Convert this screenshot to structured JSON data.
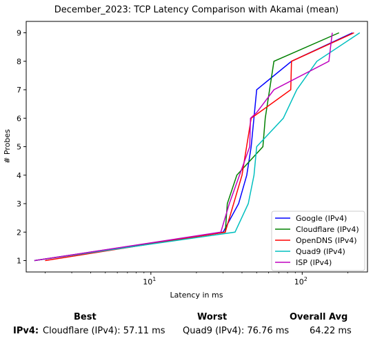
{
  "chart_data": {
    "type": "line",
    "title": "December_2023: TCP Latency Comparison with Akamai (mean)",
    "xlabel": "Latency in ms",
    "ylabel": "# Probes",
    "xscale": "log",
    "xlim": [
      1.5,
      270
    ],
    "ylim": [
      0.6,
      9.4
    ],
    "x_ticks": [
      10,
      100
    ],
    "x_tick_labels": [
      "10^1",
      "10^2"
    ],
    "y_ticks": [
      1,
      2,
      3,
      4,
      5,
      6,
      7,
      8,
      9
    ],
    "legend_position": "lower-right",
    "grid": false,
    "series": [
      {
        "name": "Google (IPv4)",
        "color": "#0000ff",
        "x": [
          1.7,
          30,
          38,
          43,
          46,
          50,
          85,
          215
        ],
        "y": [
          1,
          2,
          3,
          4,
          5,
          7,
          8,
          9
        ]
      },
      {
        "name": "Cloudflare (IPv4)",
        "color": "#008000",
        "x": [
          1.7,
          31,
          32,
          37,
          55,
          57,
          65,
          175
        ],
        "y": [
          1,
          2,
          3,
          4,
          5,
          6,
          8,
          9
        ]
      },
      {
        "name": "OpenDNS (IPv4)",
        "color": "#ff0000",
        "x": [
          2.0,
          31,
          40,
          46,
          84,
          85,
          220
        ],
        "y": [
          1,
          2,
          4,
          6,
          7,
          8,
          9
        ]
      },
      {
        "name": "Quad9 (IPv4)",
        "color": "#00bfbf",
        "x": [
          1.7,
          36,
          44,
          48,
          50,
          75,
          92,
          125,
          240
        ],
        "y": [
          1,
          2,
          3,
          4,
          5,
          6,
          7,
          8,
          9
        ]
      },
      {
        "name": "ISP (IPv4)",
        "color": "#bf00bf",
        "x": [
          1.7,
          29,
          33,
          45,
          45.5,
          50,
          65,
          150,
          158
        ],
        "y": [
          1,
          2,
          3,
          5,
          6,
          6.2,
          7,
          8,
          9
        ]
      }
    ]
  },
  "summary": {
    "best_header": "Best",
    "worst_header": "Worst",
    "avg_header": "Overall Avg",
    "row_label": "IPv4:",
    "best_value": "Cloudflare (IPv4): 57.11 ms",
    "worst_value": "Quad9 (IPv4): 76.76 ms",
    "avg_value": "64.22 ms"
  }
}
